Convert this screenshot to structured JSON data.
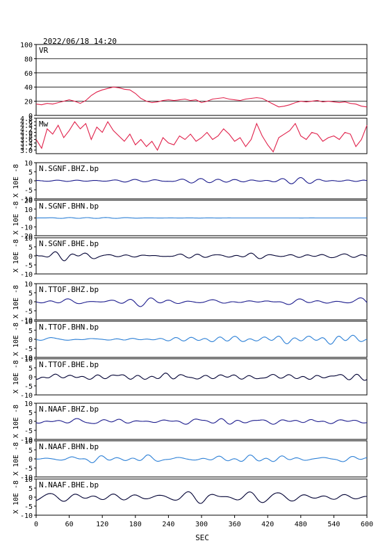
{
  "header": {
    "datetime": "2022/06/18  14:20"
  },
  "x_axis": {
    "label": "SEC",
    "min": 0,
    "max": 600,
    "ticks": [
      0,
      60,
      120,
      180,
      240,
      300,
      360,
      420,
      480,
      540,
      600
    ]
  },
  "chart_data": [
    {
      "type": "line",
      "title": "VR",
      "xlim": [
        0,
        600
      ],
      "ylim": [
        0,
        100
      ],
      "yticks": [
        0,
        20,
        40,
        60,
        80,
        100
      ],
      "grid": true,
      "color": "#e0204a",
      "x": [
        0,
        10,
        20,
        30,
        40,
        50,
        60,
        70,
        80,
        90,
        100,
        110,
        120,
        130,
        140,
        150,
        160,
        170,
        180,
        190,
        200,
        210,
        220,
        230,
        240,
        250,
        260,
        270,
        280,
        290,
        300,
        310,
        320,
        330,
        340,
        350,
        360,
        370,
        380,
        390,
        400,
        410,
        420,
        430,
        440,
        450,
        460,
        470,
        480,
        490,
        500,
        510,
        520,
        530,
        540,
        550,
        560,
        570,
        580,
        590,
        600
      ],
      "y": [
        16,
        15,
        17,
        16,
        18,
        20,
        22,
        20,
        17,
        21,
        28,
        33,
        36,
        38,
        40,
        39,
        37,
        36,
        31,
        24,
        20,
        18,
        19,
        21,
        22,
        21,
        22,
        23,
        21,
        22,
        18,
        20,
        23,
        24,
        25,
        23,
        22,
        21,
        23,
        24,
        25,
        24,
        20,
        16,
        12,
        13,
        15,
        18,
        20,
        19,
        20,
        21,
        19,
        20,
        19,
        18,
        19,
        17,
        16,
        13,
        12
      ]
    },
    {
      "type": "line",
      "title": "Mw",
      "xlim": [
        0,
        600
      ],
      "ylim": [
        2.8,
        4.8
      ],
      "yticks": [
        3.0,
        3.2,
        3.4,
        3.6,
        3.8,
        4.0,
        4.2,
        4.4,
        4.6,
        4.8
      ],
      "ytick_labels": [
        "3.0",
        "3.2",
        "3.4",
        "3.6",
        "3.8",
        "4.0",
        "4.2",
        "4.4",
        "4.6",
        "4.8"
      ],
      "color": "#e0204a",
      "x": [
        0,
        10,
        20,
        30,
        40,
        50,
        60,
        70,
        80,
        90,
        100,
        110,
        120,
        130,
        140,
        150,
        160,
        170,
        180,
        190,
        200,
        210,
        220,
        230,
        240,
        250,
        260,
        270,
        280,
        290,
        300,
        310,
        320,
        330,
        340,
        350,
        360,
        370,
        380,
        390,
        400,
        410,
        420,
        430,
        440,
        450,
        460,
        470,
        480,
        490,
        500,
        510,
        520,
        530,
        540,
        550,
        560,
        570,
        580,
        590,
        600
      ],
      "y": [
        3.6,
        3.1,
        4.2,
        3.9,
        4.4,
        3.7,
        4.1,
        4.6,
        4.2,
        4.5,
        3.6,
        4.3,
        4.0,
        4.6,
        4.1,
        3.8,
        3.5,
        3.9,
        3.3,
        3.6,
        3.2,
        3.5,
        3.0,
        3.7,
        3.4,
        3.3,
        3.8,
        3.6,
        3.9,
        3.5,
        3.7,
        4.0,
        3.6,
        3.8,
        4.2,
        3.9,
        3.5,
        3.7,
        3.2,
        3.6,
        4.5,
        3.8,
        3.3,
        2.9,
        3.7,
        3.9,
        4.1,
        4.5,
        3.8,
        3.6,
        4.0,
        3.9,
        3.5,
        3.7,
        3.8,
        3.6,
        4.0,
        3.9,
        3.2,
        3.6,
        4.4
      ]
    },
    {
      "type": "line",
      "title": "N.SGNF.BHZ.bp",
      "ylabel": "X 10E -8",
      "ylim": [
        -10,
        10
      ],
      "yticks": [
        -10,
        -5,
        0,
        5,
        10
      ],
      "color": "#1a1a8c",
      "amplitude": 1.0,
      "decay": 1.0,
      "seed": 1
    },
    {
      "type": "line",
      "title": "N.SGNF.BHN.bp",
      "ylabel": "X 10E -8",
      "ylim": [
        -20,
        20
      ],
      "yticks": [
        -20,
        -10,
        0,
        10,
        20
      ],
      "color": "#2b7fd6",
      "amplitude": 1.5,
      "decay": 0.06,
      "seed": 2
    },
    {
      "type": "line",
      "title": "N.SGNF.BHE.bp",
      "ylabel": "X 10E -8",
      "ylim": [
        -10,
        10
      ],
      "yticks": [
        -10,
        -5,
        0,
        5,
        10
      ],
      "color": "#000033",
      "amplitude": 4.0,
      "decay": 0.3,
      "seed": 3
    },
    {
      "type": "line",
      "title": "N.TTOF.BHZ.bp",
      "ylabel": "X 10E -8",
      "ylim": [
        -10,
        10
      ],
      "yticks": [
        -10,
        -5,
        0,
        5,
        10
      ],
      "color": "#1a1a8c",
      "amplitude": 1.6,
      "decay": 1.0,
      "seed": 4
    },
    {
      "type": "line",
      "title": "N.TTOF.BHN.bp",
      "ylabel": "X 10E -8",
      "ylim": [
        -10,
        10
      ],
      "yticks": [
        -10,
        -5,
        0,
        5,
        10
      ],
      "color": "#2b7fd6",
      "amplitude": 1.6,
      "decay": 1.0,
      "seed": 5
    },
    {
      "type": "line",
      "title": "N.TTOF.BHE.bp",
      "ylabel": "X 10E -8",
      "ylim": [
        -10,
        10
      ],
      "yticks": [
        -10,
        -5,
        0,
        5,
        10
      ],
      "color": "#000033",
      "amplitude": 3.5,
      "decay": 0.5,
      "seed": 6
    },
    {
      "type": "line",
      "title": "N.NAAF.BHZ.bp",
      "ylabel": "X 10E -8",
      "ylim": [
        -10,
        10
      ],
      "yticks": [
        -10,
        -5,
        0,
        5,
        10
      ],
      "color": "#1a1a8c",
      "amplitude": 2.0,
      "decay": 1.0,
      "seed": 7
    },
    {
      "type": "line",
      "title": "N.NAAF.BHN.bp",
      "ylabel": "X 10E -8",
      "ylim": [
        -10,
        10
      ],
      "yticks": [
        -10,
        -5,
        0,
        5,
        10
      ],
      "color": "#2b7fd6",
      "amplitude": 2.6,
      "decay": 1.0,
      "seed": 8
    },
    {
      "type": "line",
      "title": "N.NAAF.BHE.bp",
      "ylabel": "X 10E -8",
      "ylim": [
        -10,
        10
      ],
      "yticks": [
        -10,
        -5,
        0,
        5,
        10
      ],
      "color": "#000033",
      "amplitude": 2.4,
      "decay": 1.0,
      "seed": 9
    }
  ]
}
